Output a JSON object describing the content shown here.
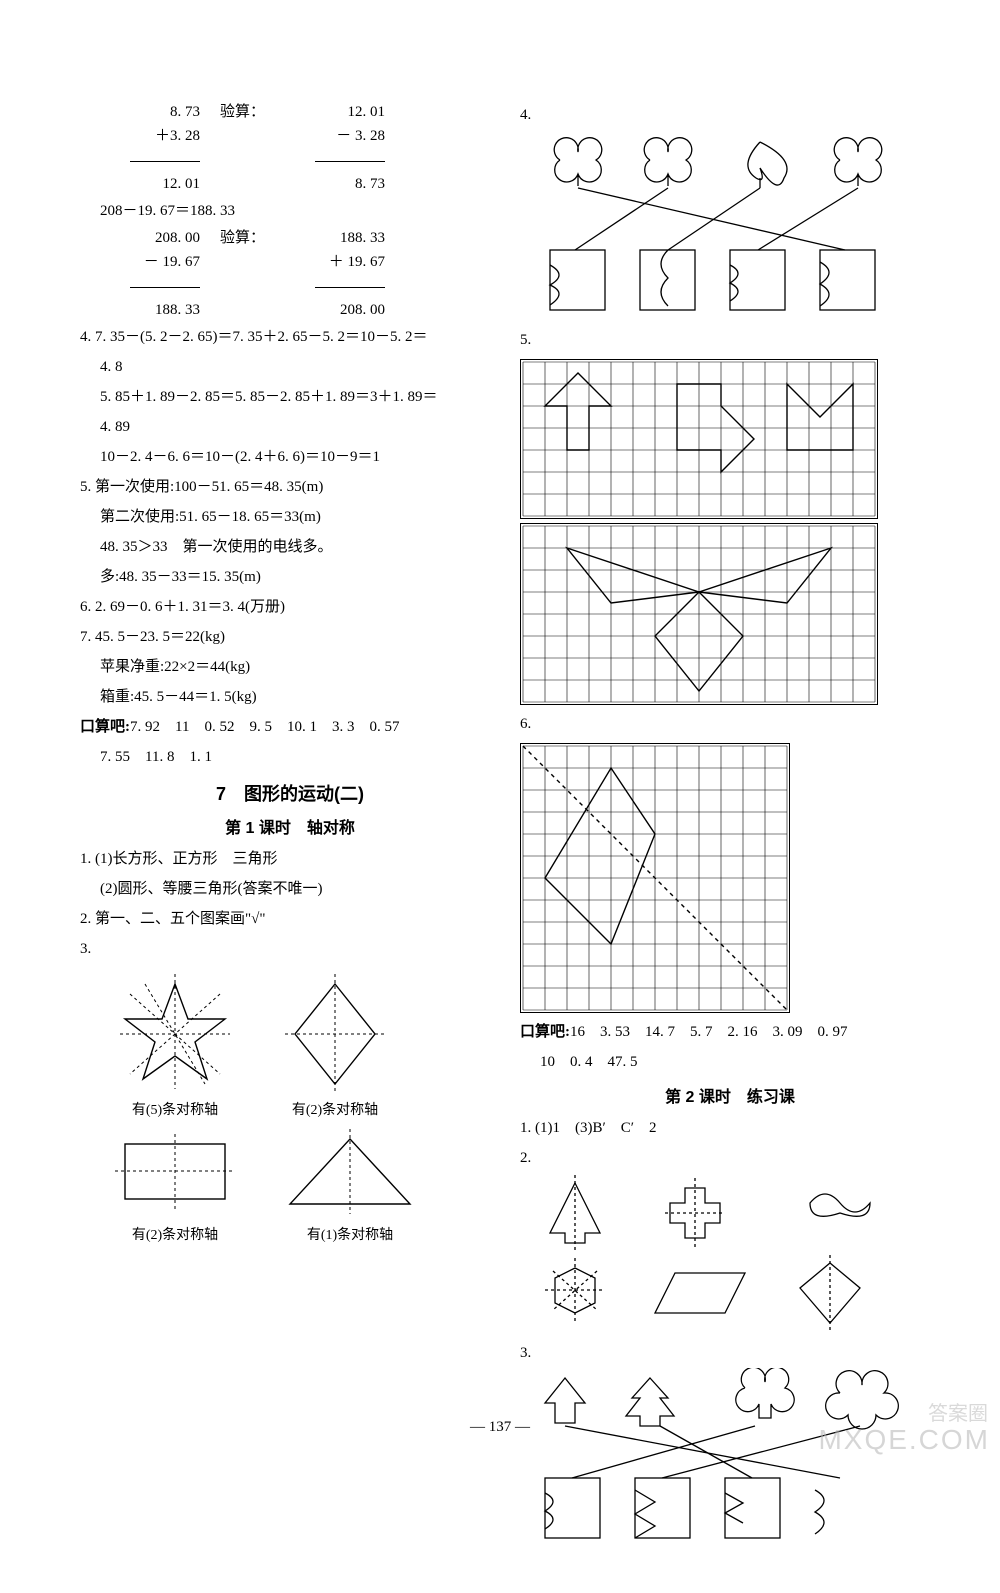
{
  "left": {
    "calc1": {
      "a1": "8. 73",
      "a2": "＋3. 28",
      "a3": "12. 01",
      "label": "验算：",
      "b1": "12. 01",
      "b2": "－ 3. 28",
      "b3": "8. 73"
    },
    "eq1": "208－19. 67＝188. 33",
    "calc2": {
      "a1": "208. 00",
      "a2": "－ 19. 67",
      "a3": "188. 33",
      "label": "验算：",
      "b1": "188. 33",
      "b2": "＋ 19. 67",
      "b3": "208. 00"
    },
    "p4a": "4. 7. 35－(5. 2－2. 65)＝7. 35＋2. 65－5. 2＝10－5. 2＝",
    "p4a2": "4. 8",
    "p4b": "5. 85＋1. 89－2. 85＝5. 85－2. 85＋1. 89＝3＋1. 89＝",
    "p4b2": "4. 89",
    "p4c": "10－2. 4－6. 6＝10－(2. 4＋6. 6)＝10－9＝1",
    "p5a": "5. 第一次使用:100－51. 65＝48. 35(m)",
    "p5b": "第二次使用:51. 65－18. 65＝33(m)",
    "p5c": "48. 35＞33　第一次使用的电线多。",
    "p5d": "多:48. 35－33＝15. 35(m)",
    "p6": "6. 2. 69－0. 6＋1. 31＝3. 4(万册)",
    "p7a": "7. 45. 5－23. 5＝22(kg)",
    "p7b": "苹果净重:22×2＝44(kg)",
    "p7c": "箱重:45. 5－44＝1. 5(kg)",
    "kousuan_label": "口算吧:",
    "kousuan1": "7. 92　11　0. 52　9. 5　10. 1　3. 3　0. 57",
    "kousuan2": "7. 55　11. 8　1. 1",
    "sec_title": "7　图形的运动(二)",
    "lesson1": "第 1 课时　轴对称",
    "l1p1": "1. (1)长方形、正方形　三角形",
    "l1p1b": "(2)圆形、等腰三角形(答案不唯一)",
    "l1p2": "2. 第一、二、五个图案画\"√\"",
    "l1p3": "3.",
    "star_label": "有(5)条对称轴",
    "diamond_label": "有(2)条对称轴",
    "rect_label": "有(2)条对称轴",
    "tri_label": "有(1)条对称轴",
    "fig3": {
      "star_color": "#000000",
      "dash_color": "#000000",
      "stroke_width": 1.2
    }
  },
  "right": {
    "p4": "4.",
    "p5": "5.",
    "p6": "6.",
    "grid": {
      "cols": 16,
      "rows": 7,
      "cell": 22,
      "stroke": "#000000"
    },
    "grid2": {
      "cols": 16,
      "rows": 8,
      "cell": 22,
      "stroke": "#000000"
    },
    "grid3": {
      "cols": 12,
      "rows": 12,
      "cell": 22,
      "stroke": "#000000"
    },
    "kousuan_label": "口算吧:",
    "kousuan1": "16　3. 53　14. 7　5. 7　2. 16　3. 09　0. 97",
    "kousuan2": "10　0. 4　47. 5",
    "lesson2": "第 2 课时　练习课",
    "l2p1": "1. (1)1　(3)B′　C′　2",
    "l2p2": "2.",
    "l2p3": "3."
  },
  "page_number": "— 137 —",
  "watermark_cn": "答案圈",
  "watermark_en": "MXQE.COM"
}
